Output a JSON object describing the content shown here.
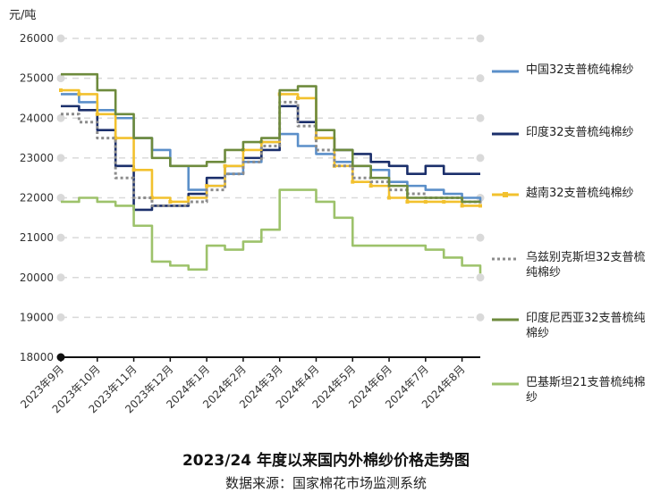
{
  "chart_data": {
    "type": "line",
    "title": "2023/24 年度以来国内外棉纱价格走势图",
    "source": "数据来源：国家棉花市场监测系统",
    "ylabel": "元/吨",
    "ylim": [
      18000,
      26000
    ],
    "yticks": [
      18000,
      19000,
      20000,
      21000,
      22000,
      23000,
      24000,
      25000,
      26000
    ],
    "grid": true,
    "legend": "right",
    "x_labels": [
      "2023年9月",
      "2023年10月",
      "2023年11月",
      "2023年12月",
      "2024年1月",
      "2024年2月",
      "2024年3月",
      "2024年4月",
      "2024年5月",
      "2024年6月",
      "2024年7月",
      "2024年8月"
    ],
    "x": [
      0,
      0.5,
      1,
      1.5,
      2,
      2.5,
      3,
      3.5,
      4,
      4.5,
      5,
      5.5,
      6,
      6.5,
      7,
      7.5,
      8,
      8.5,
      9,
      9.5,
      10,
      10.5,
      11,
      11.5
    ],
    "series": [
      {
        "name": "中国32支普梳纯棉纱",
        "color": "#5b8fc9",
        "style": "solid",
        "values": [
          24600,
          24400,
          24200,
          24000,
          23500,
          23200,
          22800,
          22200,
          22300,
          22600,
          22900,
          23400,
          23600,
          23300,
          23100,
          22900,
          22800,
          22700,
          22400,
          22300,
          22200,
          22100,
          22000,
          21900
        ]
      },
      {
        "name": "印度32支普梳纯棉纱",
        "color": "#1b2f6b",
        "style": "solid",
        "values": [
          24300,
          24200,
          23700,
          22800,
          21700,
          21800,
          21800,
          22100,
          22500,
          22800,
          23000,
          23200,
          24300,
          23900,
          23500,
          23200,
          23100,
          22900,
          22800,
          22600,
          22800,
          22600,
          22600,
          22600
        ]
      },
      {
        "name": "越南32支普梳纯棉纱",
        "color": "#f2c12e",
        "style": "marker",
        "values": [
          24700,
          24600,
          24100,
          23500,
          22700,
          22000,
          21900,
          22000,
          22300,
          22800,
          23200,
          23400,
          24600,
          24500,
          23500,
          22800,
          22400,
          22300,
          22000,
          21900,
          21900,
          21900,
          21800,
          21800
        ]
      },
      {
        "name": "乌兹别克斯坦32支普梳纯棉纱",
        "color": "#8c8c8c",
        "style": "dotted",
        "values": [
          24100,
          23900,
          23500,
          22500,
          22000,
          21800,
          21800,
          21900,
          22200,
          22600,
          22900,
          23300,
          24400,
          23800,
          23200,
          22800,
          22500,
          22400,
          22200,
          22100,
          22000,
          22000,
          21900,
          21800
        ]
      },
      {
        "name": "印度尼西亚32支普梳纯棉纱",
        "color": "#6e8b3d",
        "style": "solid",
        "values": [
          25100,
          25100,
          24700,
          24100,
          23500,
          23000,
          22800,
          22800,
          22900,
          23200,
          23400,
          23500,
          24700,
          24800,
          23700,
          23200,
          22800,
          22500,
          22300,
          22000,
          22000,
          22000,
          21900,
          21900
        ]
      },
      {
        "name": "巴基斯坦21支普梳纯棉纱",
        "color": "#9dc26b",
        "style": "solid",
        "values": [
          21900,
          22000,
          21900,
          21800,
          21300,
          20400,
          20300,
          20200,
          20800,
          20700,
          20900,
          21200,
          22200,
          22200,
          21900,
          21500,
          20800,
          20800,
          20800,
          20800,
          20700,
          20500,
          20300,
          20100
        ]
      }
    ]
  }
}
